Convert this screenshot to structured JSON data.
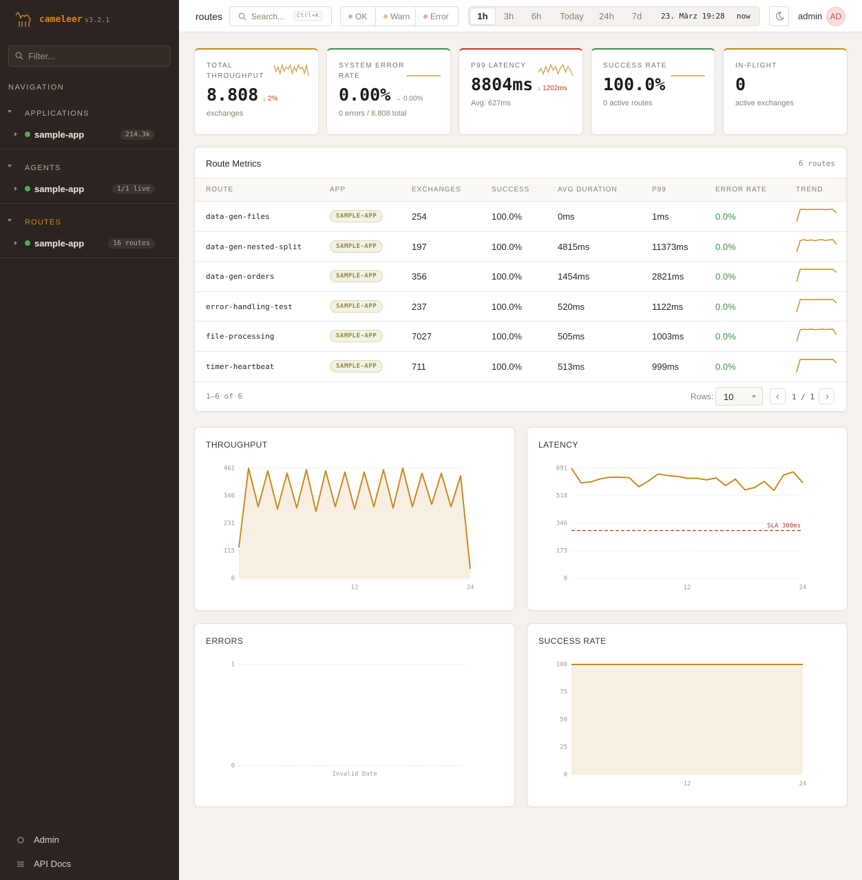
{
  "sidebar": {
    "brand": "cameleer",
    "version": "v3.2.1",
    "filter_placeholder": "Filter...",
    "nav_label": "NAVIGATION",
    "sections": [
      {
        "title": "APPLICATIONS",
        "active": false,
        "items": [
          {
            "name": "sample-app",
            "badge": "214.3k"
          }
        ]
      },
      {
        "title": "AGENTS",
        "active": false,
        "items": [
          {
            "name": "sample-app",
            "badge": "1/1 live"
          }
        ]
      },
      {
        "title": "ROUTES",
        "active": true,
        "items": [
          {
            "name": "sample-app",
            "badge": "16 routes"
          }
        ]
      }
    ],
    "footer": [
      "Admin",
      "API Docs"
    ]
  },
  "topbar": {
    "page": "routes",
    "search": "Search... ",
    "shortcut": "Ctrl+K",
    "status_filters": [
      "OK",
      "Warn",
      "Error"
    ],
    "time_ranges": [
      "1h",
      "3h",
      "6h",
      "Today",
      "24h",
      "7d"
    ],
    "active_range": "1h",
    "date_from": "23. März 19:28",
    "date_sep": "—",
    "date_to": "now",
    "user": "admin",
    "avatar": "AD"
  },
  "kpis": [
    {
      "label": "TOTAL THROUGHPUT",
      "value": "8.808",
      "delta": "↓ 2%",
      "tone": "down",
      "sub": "exchanges",
      "accent": "#c98a1e",
      "spark": [
        8,
        5,
        7,
        4,
        8,
        5,
        7,
        6,
        8,
        4,
        7,
        5,
        8,
        6,
        7,
        4,
        8,
        3
      ]
    },
    {
      "label": "SYSTEM ERROR RATE",
      "value": "0.00%",
      "delta": "→ 0.00%",
      "tone": "flat",
      "sub": "0 errors / 8.808 total",
      "accent": "#3f8f4a",
      "spark": [
        0,
        0,
        0,
        0,
        0,
        0,
        0,
        0,
        0,
        0
      ]
    },
    {
      "label": "P99 LATENCY",
      "value": "8804ms",
      "delta": "↓ 1202ms",
      "tone": "down",
      "sub": "Avg: 627ms",
      "accent": "#c0392b",
      "spark": [
        5,
        7,
        4,
        8,
        5,
        9,
        6,
        8,
        4,
        7,
        9,
        5,
        8,
        6,
        3
      ]
    },
    {
      "label": "SUCCESS RATE",
      "value": "100.0%",
      "sub": "0 active routes",
      "accent": "#3f8f4a",
      "spark": [
        100,
        100,
        100,
        100,
        100,
        100,
        100,
        100,
        100,
        100
      ]
    },
    {
      "label": "IN-FLIGHT",
      "value": "0",
      "sub": "active exchanges",
      "accent": "#c98a1e"
    }
  ],
  "route_table": {
    "title": "Route Metrics",
    "count": "6 routes",
    "columns": [
      "ROUTE",
      "APP",
      "EXCHANGES",
      "SUCCESS",
      "AVG DURATION",
      "P99",
      "ERROR RATE",
      "TREND"
    ],
    "rows": [
      [
        "data-gen-files",
        "SAMPLE-APP",
        "254",
        "100.0%",
        "0ms",
        "1ms",
        "0.0%"
      ],
      [
        "data-gen-nested-split",
        "SAMPLE-APP",
        "197",
        "100.0%",
        "4815ms",
        "11373ms",
        "0.0%"
      ],
      [
        "data-gen-orders",
        "SAMPLE-APP",
        "356",
        "100.0%",
        "1454ms",
        "2821ms",
        "0.0%"
      ],
      [
        "error-handling-test",
        "SAMPLE-APP",
        "237",
        "100.0%",
        "520ms",
        "1122ms",
        "0.0%"
      ],
      [
        "file-processing",
        "SAMPLE-APP",
        "7027",
        "100.0%",
        "505ms",
        "1003ms",
        "0.0%"
      ],
      [
        "timer-heartbeat",
        "SAMPLE-APP",
        "711",
        "100.0%",
        "513ms",
        "999ms",
        "0.0%"
      ]
    ],
    "trends": [
      [
        2,
        9,
        9,
        8.8,
        9,
        8.9,
        9,
        9,
        8.8,
        9,
        9,
        7
      ],
      [
        2,
        8,
        8.5,
        8,
        8.4,
        8,
        8.3,
        8.5,
        8,
        8.4,
        8.5,
        6
      ],
      [
        1,
        9,
        9,
        9,
        9,
        9,
        9,
        9,
        9,
        9,
        9,
        7
      ],
      [
        1,
        8,
        8,
        8,
        8,
        8,
        8,
        8,
        8,
        8,
        8,
        6
      ],
      [
        1,
        8,
        8.2,
        8,
        8.3,
        8,
        8.1,
        8.3,
        8,
        8.2,
        8.3,
        5
      ],
      [
        1,
        8,
        8,
        8,
        8,
        8,
        8,
        8,
        8,
        8,
        8,
        6
      ]
    ],
    "range": "1–6 of 6",
    "rows_label": "Rows:",
    "page_size": "10",
    "page": "1 / 1"
  },
  "charts": [
    {
      "type": "area",
      "title": "THROUGHPUT",
      "color": "#c98a1e",
      "ylim": [
        0,
        461
      ],
      "yticks": [
        0,
        115,
        231,
        346,
        461
      ],
      "xlim": [
        0,
        24
      ],
      "xticks": [
        12,
        24
      ],
      "values": [
        130,
        461,
        300,
        450,
        290,
        440,
        295,
        455,
        280,
        450,
        300,
        445,
        290,
        445,
        300,
        455,
        295,
        461,
        300,
        440,
        310,
        440,
        300,
        430,
        40
      ]
    },
    {
      "type": "line",
      "title": "LATENCY",
      "color": "#c98a1e",
      "ylim": [
        0,
        691
      ],
      "yticks": [
        0,
        173,
        346,
        518,
        691
      ],
      "xlim": [
        0,
        24
      ],
      "xticks": [
        12,
        24
      ],
      "values": [
        691,
        600,
        605,
        625,
        635,
        635,
        632,
        575,
        612,
        655,
        645,
        640,
        628,
        628,
        618,
        630,
        582,
        623,
        555,
        570,
        608,
        552,
        648,
        668,
        600
      ],
      "threshold": {
        "value": 300,
        "label": "SLA 300ms"
      }
    },
    {
      "type": "line",
      "title": "ERRORS",
      "color": "#c0392b",
      "ylim": [
        0,
        1
      ],
      "yticks": [
        0,
        1
      ],
      "x_label": "Invalid Date"
    },
    {
      "type": "area",
      "title": "SUCCESS RATE",
      "color": "#c98a1e",
      "ylim": [
        0,
        100
      ],
      "yticks": [
        0,
        25,
        50,
        75,
        100
      ],
      "xlim": [
        0,
        24
      ],
      "xticks": [
        12,
        24
      ],
      "values": [
        100,
        100,
        100,
        100,
        100,
        100,
        100,
        100,
        100,
        100,
        100,
        100,
        100,
        100,
        100,
        100,
        100,
        100,
        100,
        100,
        100,
        100,
        100,
        100,
        100
      ]
    }
  ]
}
